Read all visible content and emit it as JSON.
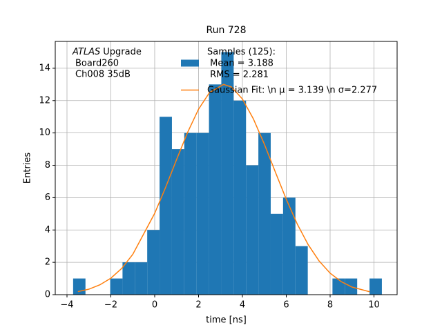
{
  "chart_data": {
    "type": "histogram",
    "title": "Run 728",
    "xlabel": "time [ns]",
    "ylabel": "Entries",
    "annotation": {
      "emphasis": "ATLAS",
      "lines": [
        "Upgrade",
        "Board260",
        "Ch008 35dB"
      ]
    },
    "bins": [
      -3.72,
      -3.157,
      -2.594,
      -2.03,
      -1.467,
      -0.904,
      -0.341,
      0.222,
      0.786,
      1.349,
      1.912,
      2.475,
      3.038,
      3.602,
      4.165,
      4.728,
      5.291,
      5.854,
      6.418,
      6.981,
      7.544,
      8.107,
      8.67,
      9.234,
      9.797,
      10.36
    ],
    "series": [
      {
        "name": "Samples (125):\n Mean = 3.188\n RMS = 2.281",
        "color": "#1f77b4",
        "values": [
          1,
          0,
          0,
          1,
          2,
          2,
          4,
          11,
          9,
          10,
          10,
          13,
          15,
          12,
          8,
          10,
          5,
          6,
          3,
          0,
          0,
          1,
          1,
          0,
          1
        ]
      },
      {
        "name": "Gaussian Fit: \\n μ = 3.139 \\n σ=2.277",
        "color": "#ff7f0e",
        "type": "line",
        "x": [
          -3.5,
          -3,
          -2.5,
          -2,
          -1.5,
          -1,
          0,
          0.5,
          1,
          1.5,
          2,
          2.5,
          3.139,
          3.5,
          4,
          4.5,
          5,
          5.5,
          6,
          6.5,
          7,
          7.5,
          8,
          8.5,
          9,
          9.8
        ],
        "values": [
          0.19,
          0.34,
          0.61,
          1.02,
          1.63,
          2.49,
          5.03,
          6.64,
          8.36,
          10.03,
          11.47,
          12.5,
          13,
          12.84,
          12.1,
          10.87,
          9.31,
          7.59,
          5.9,
          4.37,
          3.09,
          2.08,
          1.33,
          0.81,
          0.47,
          0.18
        ]
      }
    ],
    "xlim": [
      -4.535,
      11.055
    ],
    "ylim": [
      0,
      15.66
    ],
    "xticks": [
      {
        "value": -4,
        "label": "−4"
      },
      {
        "value": -2,
        "label": "−2"
      },
      0,
      2,
      4,
      6,
      8,
      10
    ],
    "yticks": [
      0,
      2,
      4,
      6,
      8,
      10,
      12,
      14
    ],
    "grid": true
  }
}
